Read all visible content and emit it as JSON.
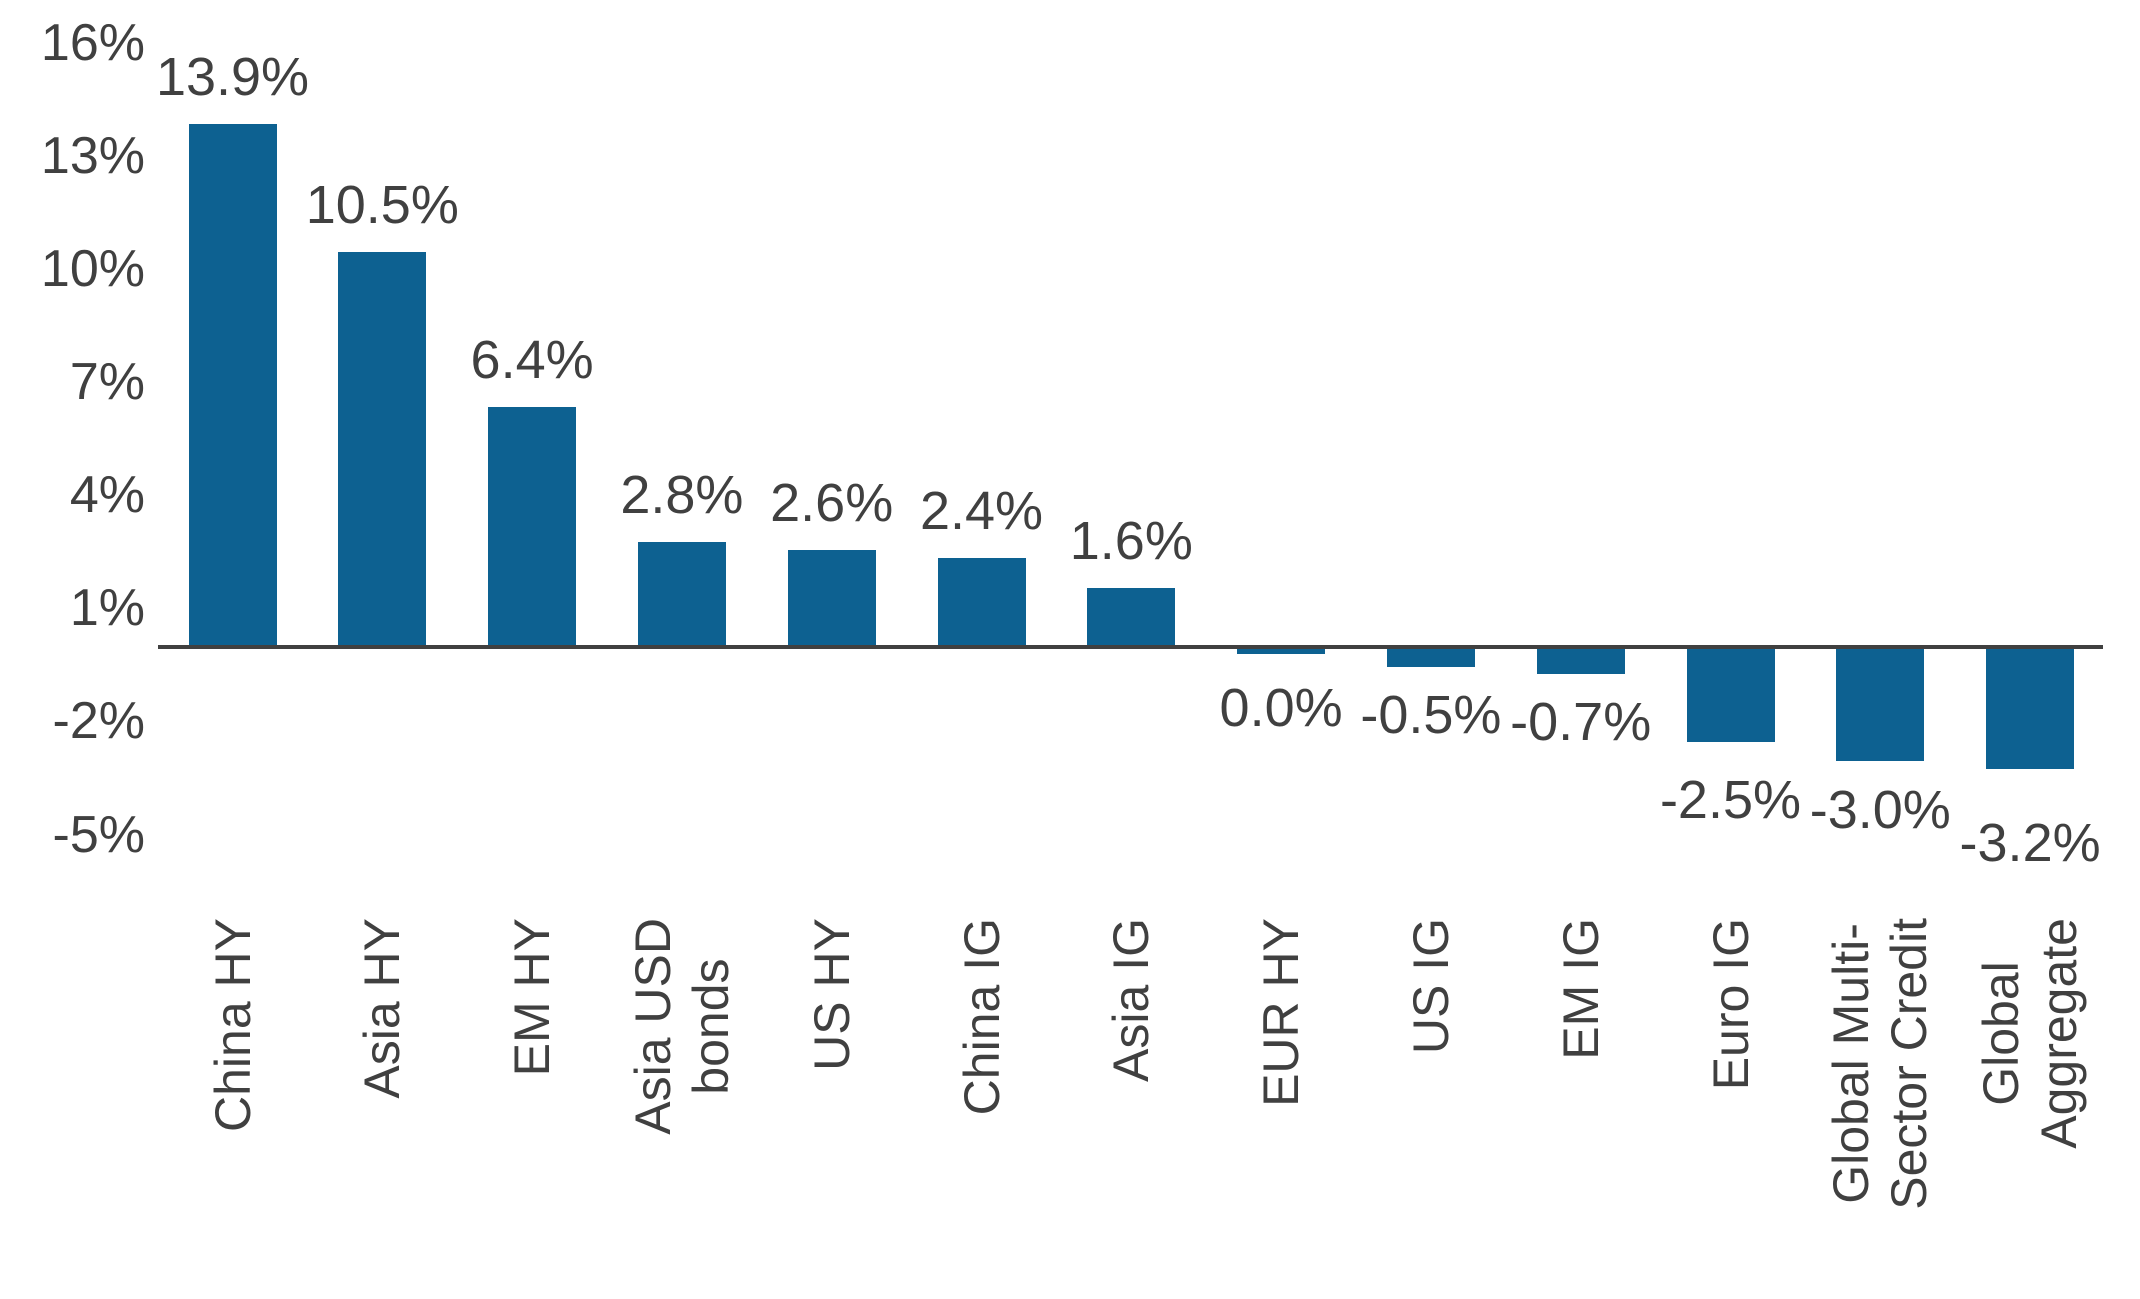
{
  "chart_data": {
    "type": "bar",
    "title": "",
    "legend": null,
    "grid": false,
    "ylim": [
      -5,
      16.5
    ],
    "colors": {
      "bar": "#0d6191",
      "text": "#404040",
      "axis": "#404040",
      "background": "#ffffff"
    },
    "y_axis": {
      "ticks": [
        {
          "label": "16%",
          "value": 16
        },
        {
          "label": "13%",
          "value": 13
        },
        {
          "label": "10%",
          "value": 10
        },
        {
          "label": "7%",
          "value": 7
        },
        {
          "label": "4%",
          "value": 4
        },
        {
          "label": "1%",
          "value": 1
        },
        {
          "label": "-2%",
          "value": -2
        },
        {
          "label": "-5%",
          "value": -5
        }
      ]
    },
    "categories": [
      [
        "China HY"
      ],
      [
        "Asia HY"
      ],
      [
        "EM HY"
      ],
      [
        "Asia USD",
        "bonds"
      ],
      [
        "US HY"
      ],
      [
        "China IG"
      ],
      [
        "Asia IG"
      ],
      [
        "EUR HY"
      ],
      [
        "US IG"
      ],
      [
        "EM IG"
      ],
      [
        "Euro IG"
      ],
      [
        "Global Multi-",
        "Sector Credit"
      ],
      [
        "Global",
        "Aggregate"
      ]
    ],
    "values": [
      13.9,
      10.5,
      6.4,
      2.8,
      2.6,
      2.4,
      1.6,
      0.0,
      -0.5,
      -0.7,
      -2.5,
      -3.0,
      -3.2
    ],
    "value_labels": [
      "13.9%",
      "10.5%",
      "6.4%",
      "2.8%",
      "2.6%",
      "2.4%",
      "1.6%",
      "0.0%",
      "-0.5%",
      "-0.7%",
      "-2.5%",
      "-3.0%",
      "-3.2%"
    ]
  }
}
